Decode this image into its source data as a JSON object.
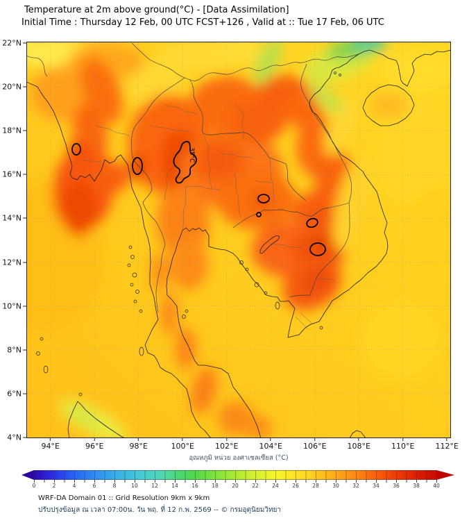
{
  "header": {
    "title": "Temperature at 2m above ground(°C) - [Data Assimilation]",
    "subtitle": "Initial Time : Thursday 12 Feb, 00 UTC FCST+126 , Valid at :: Tue 17 Feb, 06 UTC"
  },
  "map": {
    "lat_labels": [
      "22°N",
      "20°N",
      "18°N",
      "16°N",
      "14°N",
      "12°N",
      "10°N",
      "8°N",
      "6°N",
      "4°N"
    ],
    "lon_labels": [
      "94°E",
      "96°E",
      "98°E",
      "100°E",
      "102°E",
      "104°E",
      "106°E",
      "108°E",
      "110°E",
      "112°E"
    ],
    "contour_label": "35°C",
    "contour_value_c": 35
  },
  "colorbar": {
    "title": "อุณหภูมิ หน่วย องศาเซลเซียส (°C)",
    "unit": "°C",
    "min": 0,
    "max": 40,
    "tick_labels": [
      "0",
      "2",
      "4",
      "6",
      "8",
      "10",
      "12",
      "14",
      "16",
      "18",
      "20",
      "22",
      "24",
      "26",
      "28",
      "30",
      "32",
      "34",
      "36",
      "38",
      "40"
    ],
    "left_arrow_color": "#2B06A2",
    "right_arrow_color": "#C00500",
    "gradient_stops": [
      [
        "0%",
        "#3008B2"
      ],
      [
        "3%",
        "#2D20D6"
      ],
      [
        "6%",
        "#2A3BEC"
      ],
      [
        "10%",
        "#2663F8"
      ],
      [
        "15%",
        "#2F8CF2"
      ],
      [
        "20%",
        "#38ADE8"
      ],
      [
        "25%",
        "#41C4DC"
      ],
      [
        "30%",
        "#4CD4C0"
      ],
      [
        "33%",
        "#52D89E"
      ],
      [
        "36%",
        "#4AD673"
      ],
      [
        "40%",
        "#4FD84A"
      ],
      [
        "45%",
        "#7EE23C"
      ],
      [
        "50%",
        "#ABE934"
      ],
      [
        "55%",
        "#D4F02E"
      ],
      [
        "60%",
        "#F8F42A"
      ],
      [
        "64%",
        "#FFE626"
      ],
      [
        "68%",
        "#FFD521"
      ],
      [
        "72%",
        "#FFBC1C"
      ],
      [
        "76%",
        "#FFA218"
      ],
      [
        "80%",
        "#FF8713"
      ],
      [
        "85%",
        "#FB5F0A"
      ],
      [
        "90%",
        "#EF3C04"
      ],
      [
        "95%",
        "#DC1E00"
      ],
      [
        "100%",
        "#C60C00"
      ]
    ]
  },
  "footer": {
    "line1": "WRF-DA Domain 01 :: Grid Resolution 9km x 9km",
    "line2": "ปรับปรุงข้อมูล ณ เวลา 07:00น. วัน พฤ. ที่ 12 ก.พ. 2569 -- © กรมอุตุนิยมวิทยา"
  }
}
